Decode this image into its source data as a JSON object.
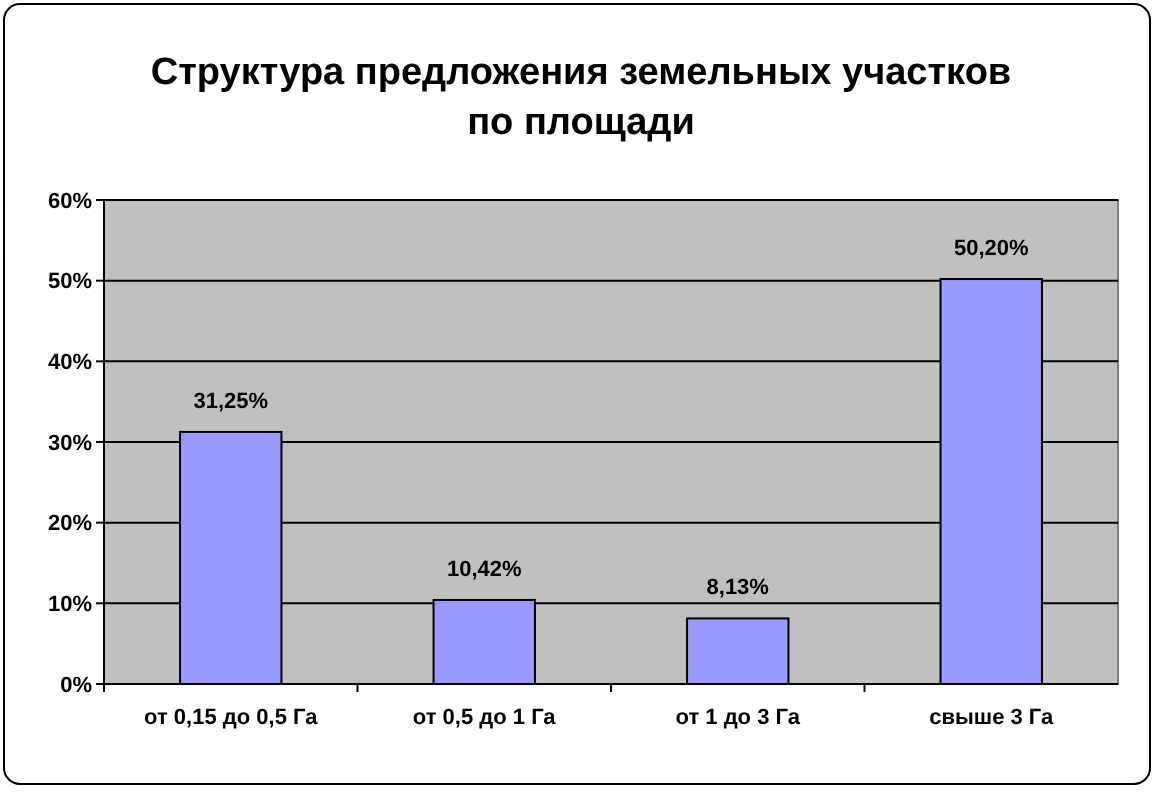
{
  "chart_data": {
    "type": "bar",
    "title": "Структура предложения земельных участков\nпо площади",
    "categories": [
      "от 0,15 до 0,5 Га",
      "от 0,5 до 1 Га",
      "от 1 до 3 Га",
      "свыше 3 Га"
    ],
    "values": [
      31.25,
      10.42,
      8.13,
      50.2
    ],
    "value_labels": [
      "31,25%",
      "10,42%",
      "8,13%",
      "50,20%"
    ],
    "color": "#9999ff",
    "ylim": [
      0,
      60
    ],
    "yticks": [
      {
        "value": 0,
        "label": "0%"
      },
      {
        "value": 10,
        "label": "10%"
      },
      {
        "value": 20,
        "label": "20%"
      },
      {
        "value": 30,
        "label": "30%"
      },
      {
        "value": 40,
        "label": "40%"
      },
      {
        "value": 50,
        "label": "50%"
      },
      {
        "value": 60,
        "label": "60%"
      }
    ],
    "grid": "y"
  }
}
